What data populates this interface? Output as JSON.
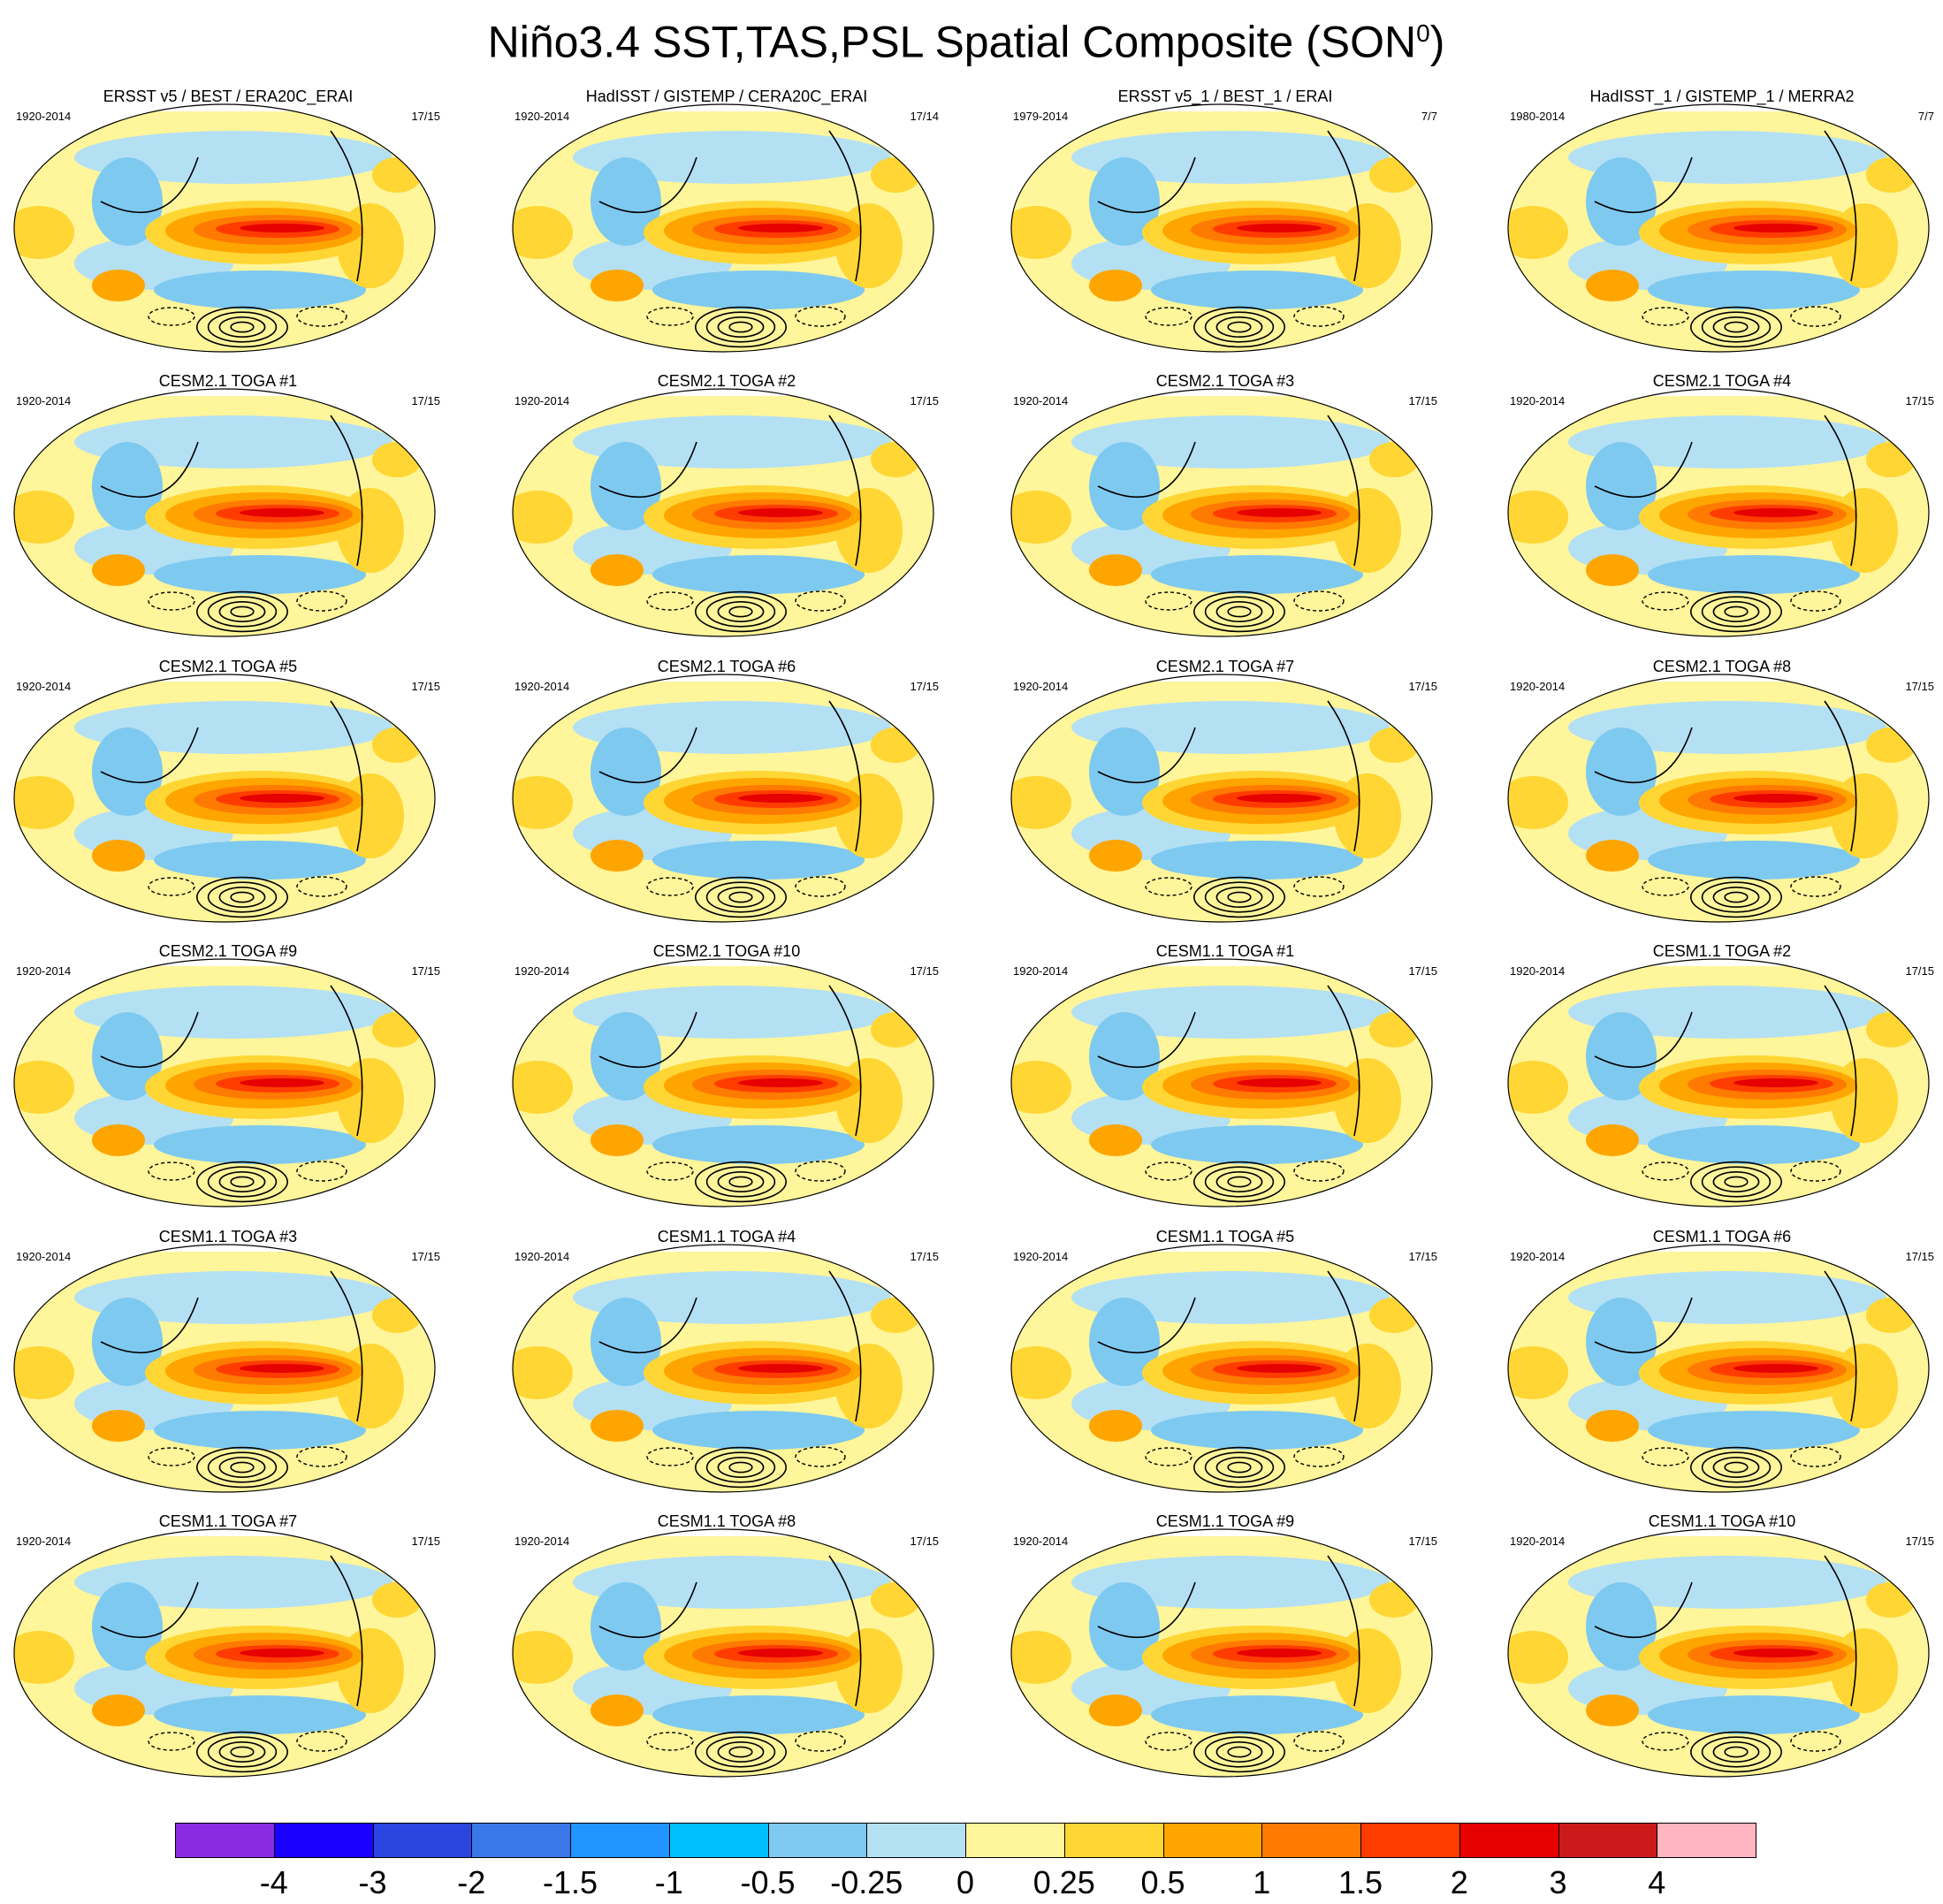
{
  "title": {
    "main": "Niño3.4 SST,TAS,PSL Spatial Composite (SON",
    "sup": "0",
    "close": ")"
  },
  "panels": [
    {
      "name": "ERSST v5 / BEST / ERA20C_ERAI",
      "years": "1920-2014",
      "count": "17/15"
    },
    {
      "name": "HadISST / GISTEMP / CERA20C_ERAI",
      "years": "1920-2014",
      "count": "17/14"
    },
    {
      "name": "ERSST v5_1 / BEST_1 / ERAI",
      "years": "1979-2014",
      "count": "7/7"
    },
    {
      "name": "HadISST_1 / GISTEMP_1 / MERRA2",
      "years": "1980-2014",
      "count": "7/7"
    },
    {
      "name": "CESM2.1 TOGA #1",
      "years": "1920-2014",
      "count": "17/15"
    },
    {
      "name": "CESM2.1 TOGA #2",
      "years": "1920-2014",
      "count": "17/15"
    },
    {
      "name": "CESM2.1 TOGA #3",
      "years": "1920-2014",
      "count": "17/15"
    },
    {
      "name": "CESM2.1 TOGA #4",
      "years": "1920-2014",
      "count": "17/15"
    },
    {
      "name": "CESM2.1 TOGA #5",
      "years": "1920-2014",
      "count": "17/15"
    },
    {
      "name": "CESM2.1 TOGA #6",
      "years": "1920-2014",
      "count": "17/15"
    },
    {
      "name": "CESM2.1 TOGA #7",
      "years": "1920-2014",
      "count": "17/15"
    },
    {
      "name": "CESM2.1 TOGA #8",
      "years": "1920-2014",
      "count": "17/15"
    },
    {
      "name": "CESM2.1 TOGA #9",
      "years": "1920-2014",
      "count": "17/15"
    },
    {
      "name": "CESM2.1 TOGA #10",
      "years": "1920-2014",
      "count": "17/15"
    },
    {
      "name": "CESM1.1 TOGA #1",
      "years": "1920-2014",
      "count": "17/15"
    },
    {
      "name": "CESM1.1 TOGA #2",
      "years": "1920-2014",
      "count": "17/15"
    },
    {
      "name": "CESM1.1 TOGA #3",
      "years": "1920-2014",
      "count": "17/15"
    },
    {
      "name": "CESM1.1 TOGA #4",
      "years": "1920-2014",
      "count": "17/15"
    },
    {
      "name": "CESM1.1 TOGA #5",
      "years": "1920-2014",
      "count": "17/15"
    },
    {
      "name": "CESM1.1 TOGA #6",
      "years": "1920-2014",
      "count": "17/15"
    },
    {
      "name": "CESM1.1 TOGA #7",
      "years": "1920-2014",
      "count": "17/15"
    },
    {
      "name": "CESM1.1 TOGA #8",
      "years": "1920-2014",
      "count": "17/15"
    },
    {
      "name": "CESM1.1 TOGA #9",
      "years": "1920-2014",
      "count": "17/15"
    },
    {
      "name": "CESM1.1 TOGA #10",
      "years": "1920-2014",
      "count": "17/15"
    }
  ],
  "colorbar": {
    "colors": [
      "#8a2be2",
      "#1900ff",
      "#2a45e0",
      "#3a78ea",
      "#2194ff",
      "#00bfff",
      "#7ec9f0",
      "#b4e0f4",
      "#fff59a",
      "#ffd633",
      "#ffa500",
      "#ff7a00",
      "#ff3c00",
      "#e60000",
      "#cc1a1a",
      "#ffb6c1"
    ],
    "labels": [
      "-4",
      "-3",
      "-2",
      "-1.5",
      "-1",
      "-0.5",
      "-0.25",
      "0",
      "0.25",
      "0.5",
      "1",
      "1.5",
      "2",
      "3",
      "4"
    ]
  }
}
